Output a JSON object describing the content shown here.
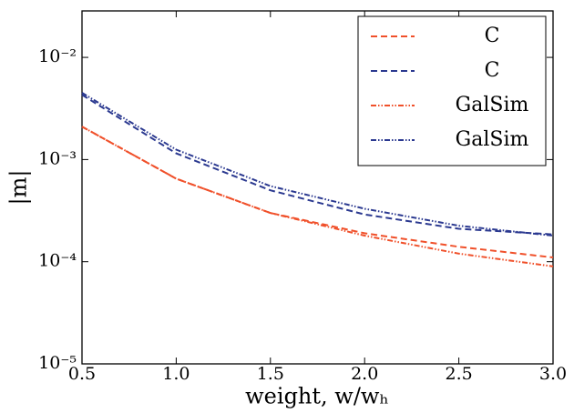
{
  "chart_data": {
    "type": "line",
    "log_y": true,
    "x_label": "weight, w/wₕ",
    "y_label": "|m|",
    "x": [
      0.5,
      1.0,
      1.5,
      2.0,
      2.5,
      3.0
    ],
    "series": [
      {
        "name": "C",
        "color": "#f0502a",
        "linestyle": "dashed",
        "values": [
          0.0021,
          0.00065,
          0.0003,
          0.00019,
          0.00014,
          0.00011
        ]
      },
      {
        "name": "C",
        "color": "#2b3990",
        "linestyle": "dashed",
        "values": [
          0.0043,
          0.00115,
          0.0005,
          0.00029,
          0.00021,
          0.000185
        ]
      },
      {
        "name": "GalSim",
        "color": "#f0502a",
        "linestyle": "dashdotdot",
        "values": [
          0.0021,
          0.00065,
          0.0003,
          0.00018,
          0.00012,
          9e-05
        ]
      },
      {
        "name": "GalSim",
        "color": "#2b3990",
        "linestyle": "dashdotdot",
        "values": [
          0.0045,
          0.00125,
          0.00055,
          0.00033,
          0.000225,
          0.00018
        ]
      }
    ],
    "xlim": [
      0.5,
      3.0
    ],
    "xticks": [
      0.5,
      {
        "value": 1.0,
        "label": "1.0"
      },
      1.5,
      {
        "value": 2.0,
        "label": "2.0"
      },
      2.5,
      {
        "value": 3.0,
        "label": "3.0"
      }
    ],
    "ylim": [
      1e-05,
      0.0285
    ],
    "yticks": [
      {
        "value": 1e-05,
        "label": "10⁻⁵"
      },
      {
        "value": 0.0001,
        "label": "10⁻⁴"
      },
      {
        "value": 0.001,
        "label": "10⁻³"
      },
      {
        "value": 0.01,
        "label": "10⁻²"
      }
    ],
    "legend": "upper right"
  }
}
